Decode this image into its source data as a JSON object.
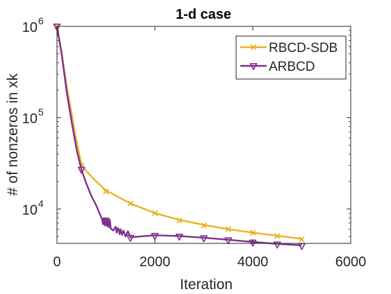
{
  "chart_data": {
    "type": "line",
    "title": "1-d case",
    "xlabel": "Iteration",
    "ylabel": "# of nonzeros in xk",
    "xlim": [
      0,
      6000
    ],
    "ylim": [
      4200,
      1000000
    ],
    "y_scale": "log",
    "x_ticks": [
      "0",
      "2000",
      "4000",
      "6000"
    ],
    "y_ticks": [
      {
        "value": 10000,
        "mantissa": "10",
        "exponent": "4"
      },
      {
        "value": 100000,
        "mantissa": "10",
        "exponent": "5"
      },
      {
        "value": 1000000,
        "mantissa": "10",
        "exponent": "6"
      }
    ],
    "legend_position": "top-right",
    "grid": false,
    "series": [
      {
        "name": "RBCD-SDB",
        "color": "#EDB120",
        "marker": "x",
        "line": [
          [
            0,
            1000000
          ],
          [
            100,
            500000
          ],
          [
            200,
            220000
          ],
          [
            300,
            110000
          ],
          [
            400,
            55000
          ],
          [
            500,
            31000
          ],
          [
            600,
            26000
          ],
          [
            800,
            20000
          ],
          [
            1000,
            16000
          ],
          [
            1500,
            11500
          ],
          [
            2000,
            9000
          ],
          [
            2500,
            7600
          ],
          [
            3000,
            6700
          ],
          [
            3500,
            6000
          ],
          [
            4000,
            5500
          ],
          [
            4500,
            5100
          ],
          [
            5000,
            4700
          ]
        ],
        "markers": [
          [
            0,
            1000000
          ],
          [
            500,
            30000
          ],
          [
            1000,
            15500
          ],
          [
            1500,
            11500
          ],
          [
            2000,
            9000
          ],
          [
            2500,
            7500
          ],
          [
            3000,
            6600
          ],
          [
            3500,
            6000
          ],
          [
            4000,
            5500
          ],
          [
            4500,
            5050
          ],
          [
            5000,
            4650
          ]
        ]
      },
      {
        "name": "ARBCD",
        "color": "#7E2F8E",
        "marker": "triangle-down",
        "line": [
          [
            0,
            1000000
          ],
          [
            100,
            480000
          ],
          [
            200,
            190000
          ],
          [
            300,
            90000
          ],
          [
            400,
            45000
          ],
          [
            500,
            27000
          ],
          [
            600,
            19000
          ],
          [
            700,
            14000
          ],
          [
            800,
            11000
          ],
          [
            850,
            9500
          ],
          [
            900,
            8200
          ],
          [
            920,
            7800
          ],
          [
            940,
            6800
          ],
          [
            960,
            7900
          ],
          [
            980,
            6600
          ],
          [
            1000,
            7800
          ],
          [
            1020,
            6500
          ],
          [
            1040,
            7700
          ],
          [
            1060,
            6300
          ],
          [
            1080,
            7600
          ],
          [
            1100,
            6100
          ],
          [
            1150,
            5800
          ],
          [
            1200,
            6400
          ],
          [
            1220,
            5500
          ],
          [
            1250,
            6200
          ],
          [
            1280,
            5300
          ],
          [
            1300,
            6000
          ],
          [
            1330,
            5200
          ],
          [
            1360,
            5800
          ],
          [
            1400,
            5000
          ],
          [
            1450,
            5700
          ],
          [
            1500,
            4900
          ],
          [
            1700,
            5000
          ],
          [
            2000,
            5150
          ],
          [
            2500,
            5050
          ],
          [
            3000,
            4850
          ],
          [
            3500,
            4600
          ],
          [
            4000,
            4350
          ],
          [
            4500,
            4150
          ],
          [
            5000,
            4000
          ]
        ],
        "markers": [
          [
            0,
            1000000
          ],
          [
            500,
            27000
          ],
          [
            1000,
            7500
          ],
          [
            1500,
            4850
          ],
          [
            2000,
            5100
          ],
          [
            2500,
            5000
          ],
          [
            3000,
            4800
          ],
          [
            3500,
            4550
          ],
          [
            4000,
            4300
          ],
          [
            4500,
            4100
          ],
          [
            5000,
            3950
          ]
        ]
      }
    ]
  }
}
